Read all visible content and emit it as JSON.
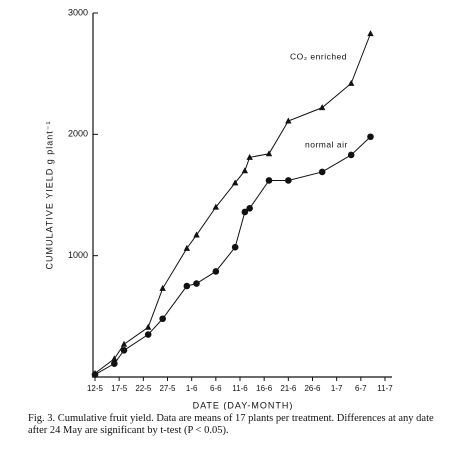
{
  "chart_data": {
    "type": "line",
    "y_label": "CUMULATIVE YIELD g plant⁻¹",
    "x_label": "DATE (DAY-MONTH)",
    "caption": "Fig. 3.    Cumulative fruit yield. Data are means of 17 plants per treatment. Differences at any date after 24 May are significant by t-test (P < 0.05).",
    "x": [
      "12-5",
      "16-5",
      "18-5",
      "23-5",
      "26-5",
      "31-5",
      "2-6",
      "6-6",
      "10-6",
      "12-6",
      "13-6",
      "17-6",
      "21-6",
      "28-6",
      "4-7",
      "8-7"
    ],
    "series": [
      {
        "name": "CO₂ enriched",
        "color": "#111111",
        "marker": "triangle",
        "values": [
          30,
          150,
          270,
          410,
          730,
          1060,
          1170,
          1400,
          1600,
          1700,
          1810,
          1840,
          2110,
          2220,
          2420,
          2830
        ]
      },
      {
        "name": "normal air",
        "color": "#111111",
        "marker": "circle",
        "values": [
          20,
          110,
          220,
          350,
          480,
          750,
          770,
          870,
          1070,
          1360,
          1390,
          1620,
          1620,
          1690,
          1830,
          1980
        ]
      }
    ],
    "xlim": [
      "12-5",
      "11-7"
    ],
    "xticks": [
      "12-5",
      "17-5",
      "22-5",
      "27-5",
      "1-6",
      "6-6",
      "11-6",
      "16-6",
      "21-6",
      "26-6",
      "1-7",
      "6-7",
      "11-7"
    ],
    "ylim": [
      0,
      3000
    ],
    "yticks": [
      1000,
      2000,
      3000
    ],
    "grid": false
  }
}
